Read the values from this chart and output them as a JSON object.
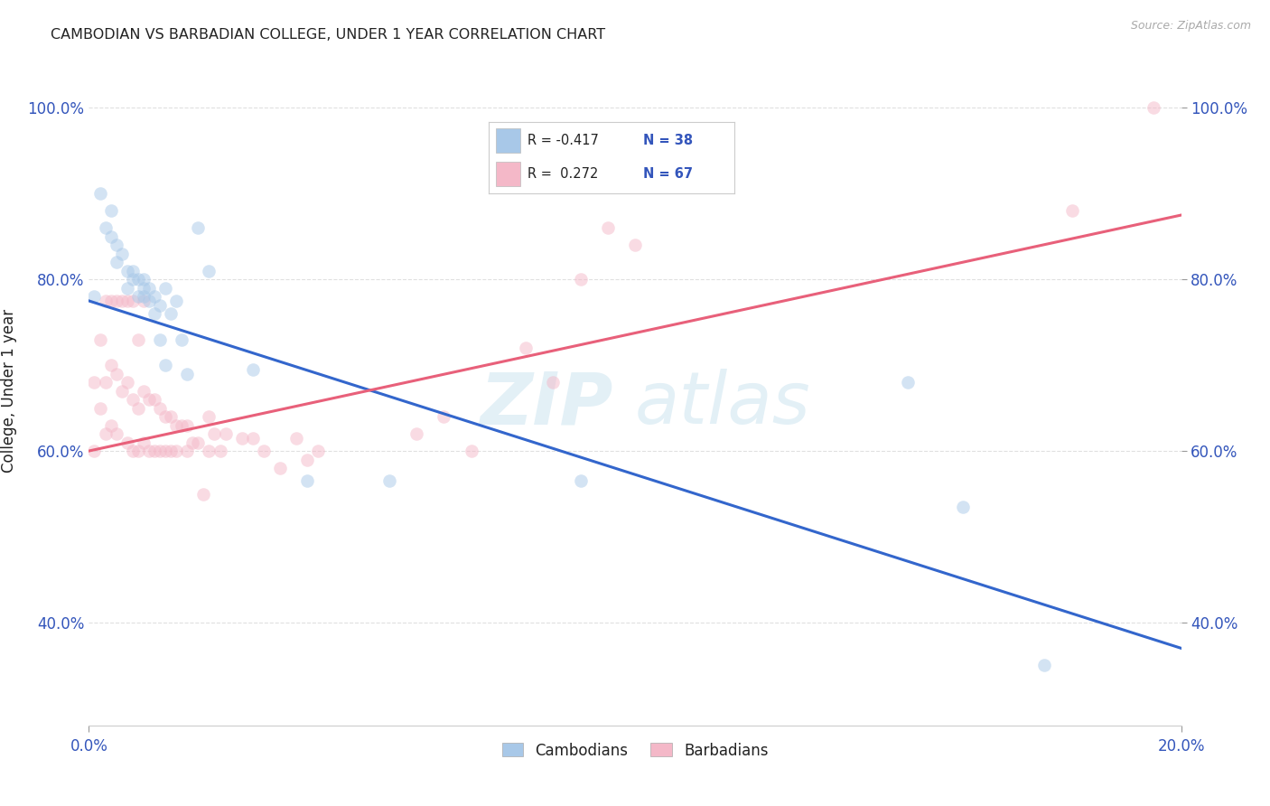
{
  "title": "CAMBODIAN VS BARBADIAN COLLEGE, UNDER 1 YEAR CORRELATION CHART",
  "source": "Source: ZipAtlas.com",
  "ylabel": "College, Under 1 year",
  "x_min": 0.0,
  "x_max": 0.2,
  "y_min": 0.28,
  "y_max": 1.06,
  "watermark_zip": "ZIP",
  "watermark_atlas": "atlas",
  "legend_blue_label": "Cambodians",
  "legend_pink_label": "Barbadians",
  "blue_color": "#a8c8e8",
  "pink_color": "#f4b8c8",
  "blue_line_color": "#3366cc",
  "pink_line_color": "#e8607a",
  "background_color": "#ffffff",
  "grid_color": "#dddddd",
  "title_color": "#222222",
  "axis_label_color": "#222222",
  "tick_label_color": "#3355bb",
  "legend_text_color": "#3355bb",
  "legend_R_color": "#222222",
  "blue_scatter_x": [
    0.001,
    0.002,
    0.003,
    0.004,
    0.004,
    0.005,
    0.005,
    0.006,
    0.007,
    0.007,
    0.008,
    0.008,
    0.009,
    0.009,
    0.01,
    0.01,
    0.01,
    0.011,
    0.011,
    0.012,
    0.012,
    0.013,
    0.013,
    0.014,
    0.014,
    0.015,
    0.016,
    0.017,
    0.018,
    0.02,
    0.022,
    0.03,
    0.04,
    0.055,
    0.09,
    0.15,
    0.16,
    0.175
  ],
  "blue_scatter_y": [
    0.78,
    0.9,
    0.86,
    0.85,
    0.88,
    0.84,
    0.82,
    0.83,
    0.81,
    0.79,
    0.81,
    0.8,
    0.8,
    0.78,
    0.79,
    0.78,
    0.8,
    0.79,
    0.775,
    0.78,
    0.76,
    0.77,
    0.73,
    0.79,
    0.7,
    0.76,
    0.775,
    0.73,
    0.69,
    0.86,
    0.81,
    0.695,
    0.565,
    0.565,
    0.565,
    0.68,
    0.535,
    0.35
  ],
  "pink_scatter_x": [
    0.001,
    0.001,
    0.002,
    0.002,
    0.003,
    0.003,
    0.003,
    0.004,
    0.004,
    0.004,
    0.005,
    0.005,
    0.005,
    0.006,
    0.006,
    0.007,
    0.007,
    0.007,
    0.008,
    0.008,
    0.008,
    0.009,
    0.009,
    0.009,
    0.01,
    0.01,
    0.01,
    0.011,
    0.011,
    0.012,
    0.012,
    0.013,
    0.013,
    0.014,
    0.014,
    0.015,
    0.015,
    0.016,
    0.016,
    0.017,
    0.018,
    0.018,
    0.019,
    0.02,
    0.021,
    0.022,
    0.022,
    0.023,
    0.024,
    0.025,
    0.028,
    0.03,
    0.032,
    0.035,
    0.038,
    0.04,
    0.042,
    0.06,
    0.065,
    0.07,
    0.08,
    0.085,
    0.09,
    0.095,
    0.1,
    0.18,
    0.195
  ],
  "pink_scatter_y": [
    0.68,
    0.6,
    0.73,
    0.65,
    0.775,
    0.68,
    0.62,
    0.775,
    0.7,
    0.63,
    0.775,
    0.69,
    0.62,
    0.775,
    0.67,
    0.775,
    0.68,
    0.61,
    0.775,
    0.66,
    0.6,
    0.73,
    0.65,
    0.6,
    0.775,
    0.67,
    0.61,
    0.66,
    0.6,
    0.66,
    0.6,
    0.65,
    0.6,
    0.64,
    0.6,
    0.64,
    0.6,
    0.63,
    0.6,
    0.63,
    0.63,
    0.6,
    0.61,
    0.61,
    0.55,
    0.64,
    0.6,
    0.62,
    0.6,
    0.62,
    0.615,
    0.615,
    0.6,
    0.58,
    0.615,
    0.59,
    0.6,
    0.62,
    0.64,
    0.6,
    0.72,
    0.68,
    0.8,
    0.86,
    0.84,
    0.88,
    1.0
  ],
  "blue_line_x": [
    0.0,
    0.2
  ],
  "blue_line_y": [
    0.775,
    0.37
  ],
  "pink_line_x": [
    0.0,
    0.2
  ],
  "pink_line_y": [
    0.6,
    0.875
  ],
  "xtick_locs": [
    0.0,
    0.2
  ],
  "xtick_labels": [
    "0.0%",
    "20.0%"
  ],
  "ytick_locs": [
    0.4,
    0.6,
    0.8,
    1.0
  ],
  "ytick_labels": [
    "40.0%",
    "60.0%",
    "80.0%",
    "100.0%"
  ],
  "dot_size": 110,
  "dot_alpha": 0.5,
  "dot_linewidth": 1.0
}
